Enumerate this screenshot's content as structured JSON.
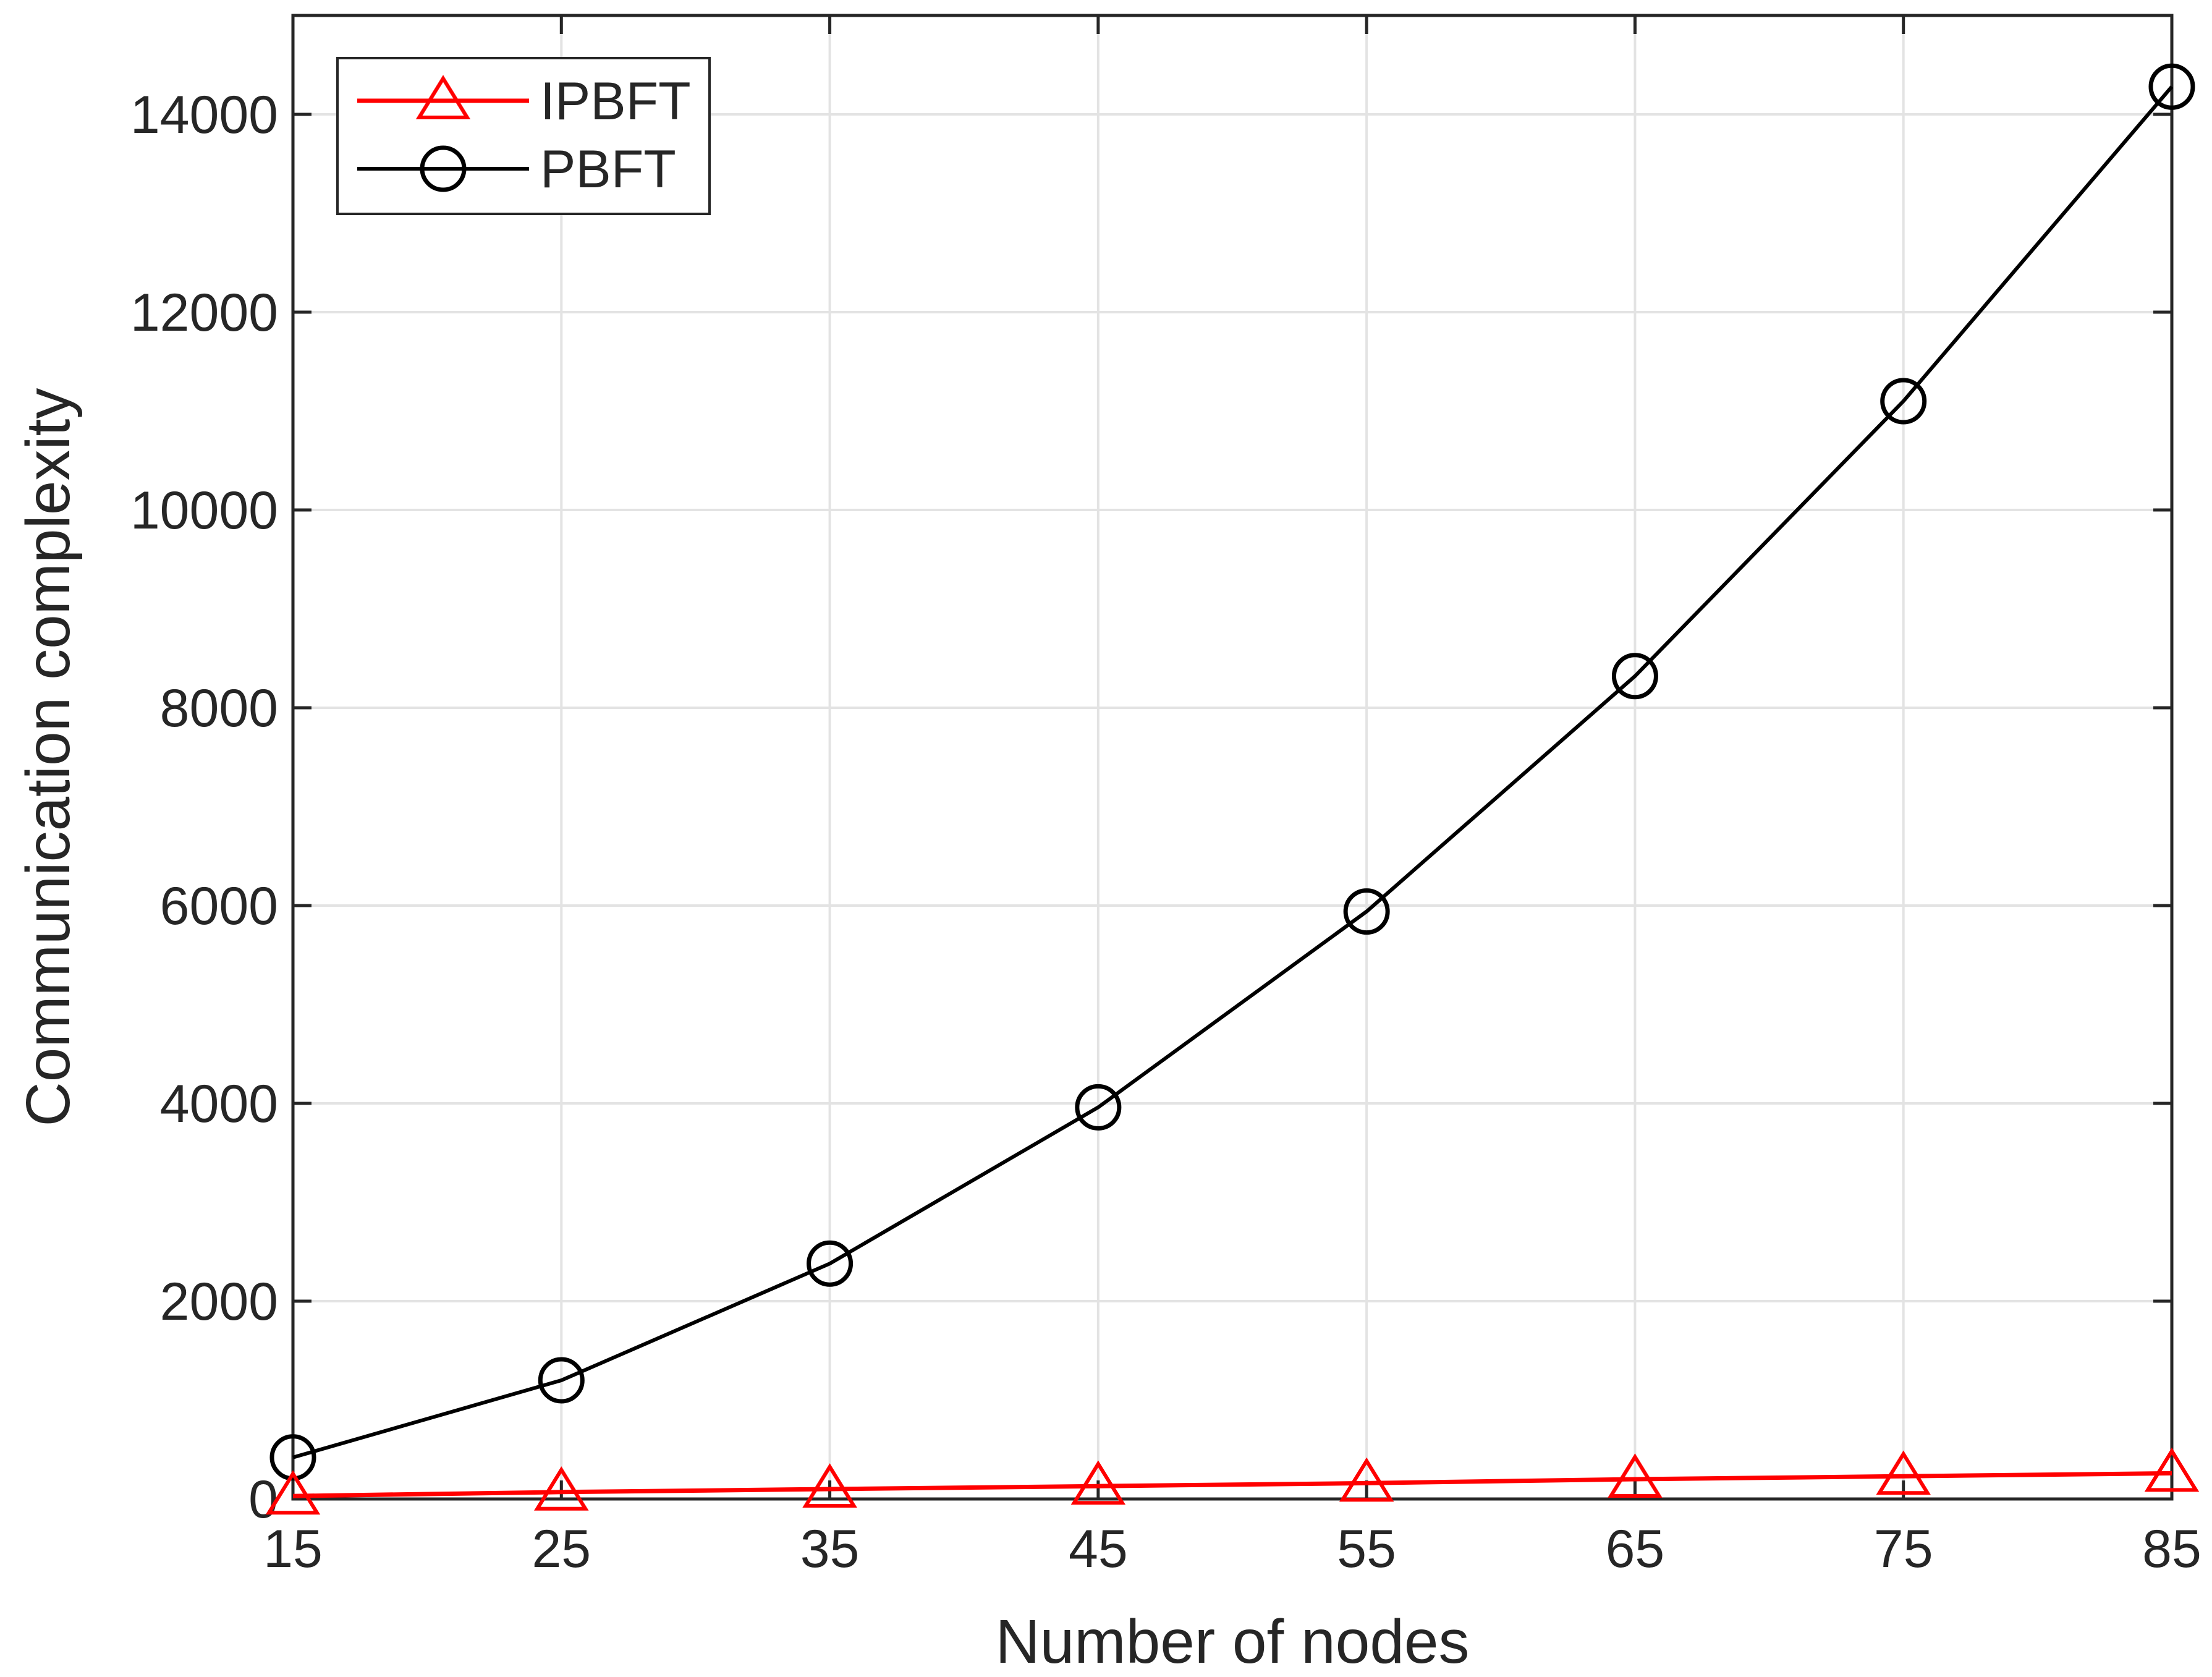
{
  "chart_data": {
    "type": "line",
    "xlabel": "Number of nodes",
    "ylabel": "Communication complexity",
    "x": [
      15,
      25,
      35,
      45,
      55,
      65,
      75,
      85
    ],
    "xlim": [
      15,
      85
    ],
    "ylim": [
      0,
      15000
    ],
    "xticks": [
      "15",
      "25",
      "35",
      "45",
      "55",
      "65",
      "75",
      "85"
    ],
    "yticks": [
      "0",
      "2000",
      "4000",
      "6000",
      "8000",
      "10000",
      "12000",
      "14000"
    ],
    "grid": true,
    "legend_position": "top-left",
    "series": [
      {
        "name": "IPBFT",
        "color": "#ff0000",
        "marker": "triangle",
        "values": [
          30,
          70,
          100,
          130,
          160,
          200,
          230,
          260
        ]
      },
      {
        "name": "PBFT",
        "color": "#000000",
        "marker": "circle",
        "values": [
          420,
          1200,
          2380,
          3960,
          5940,
          8320,
          11100,
          14280
        ]
      }
    ]
  }
}
